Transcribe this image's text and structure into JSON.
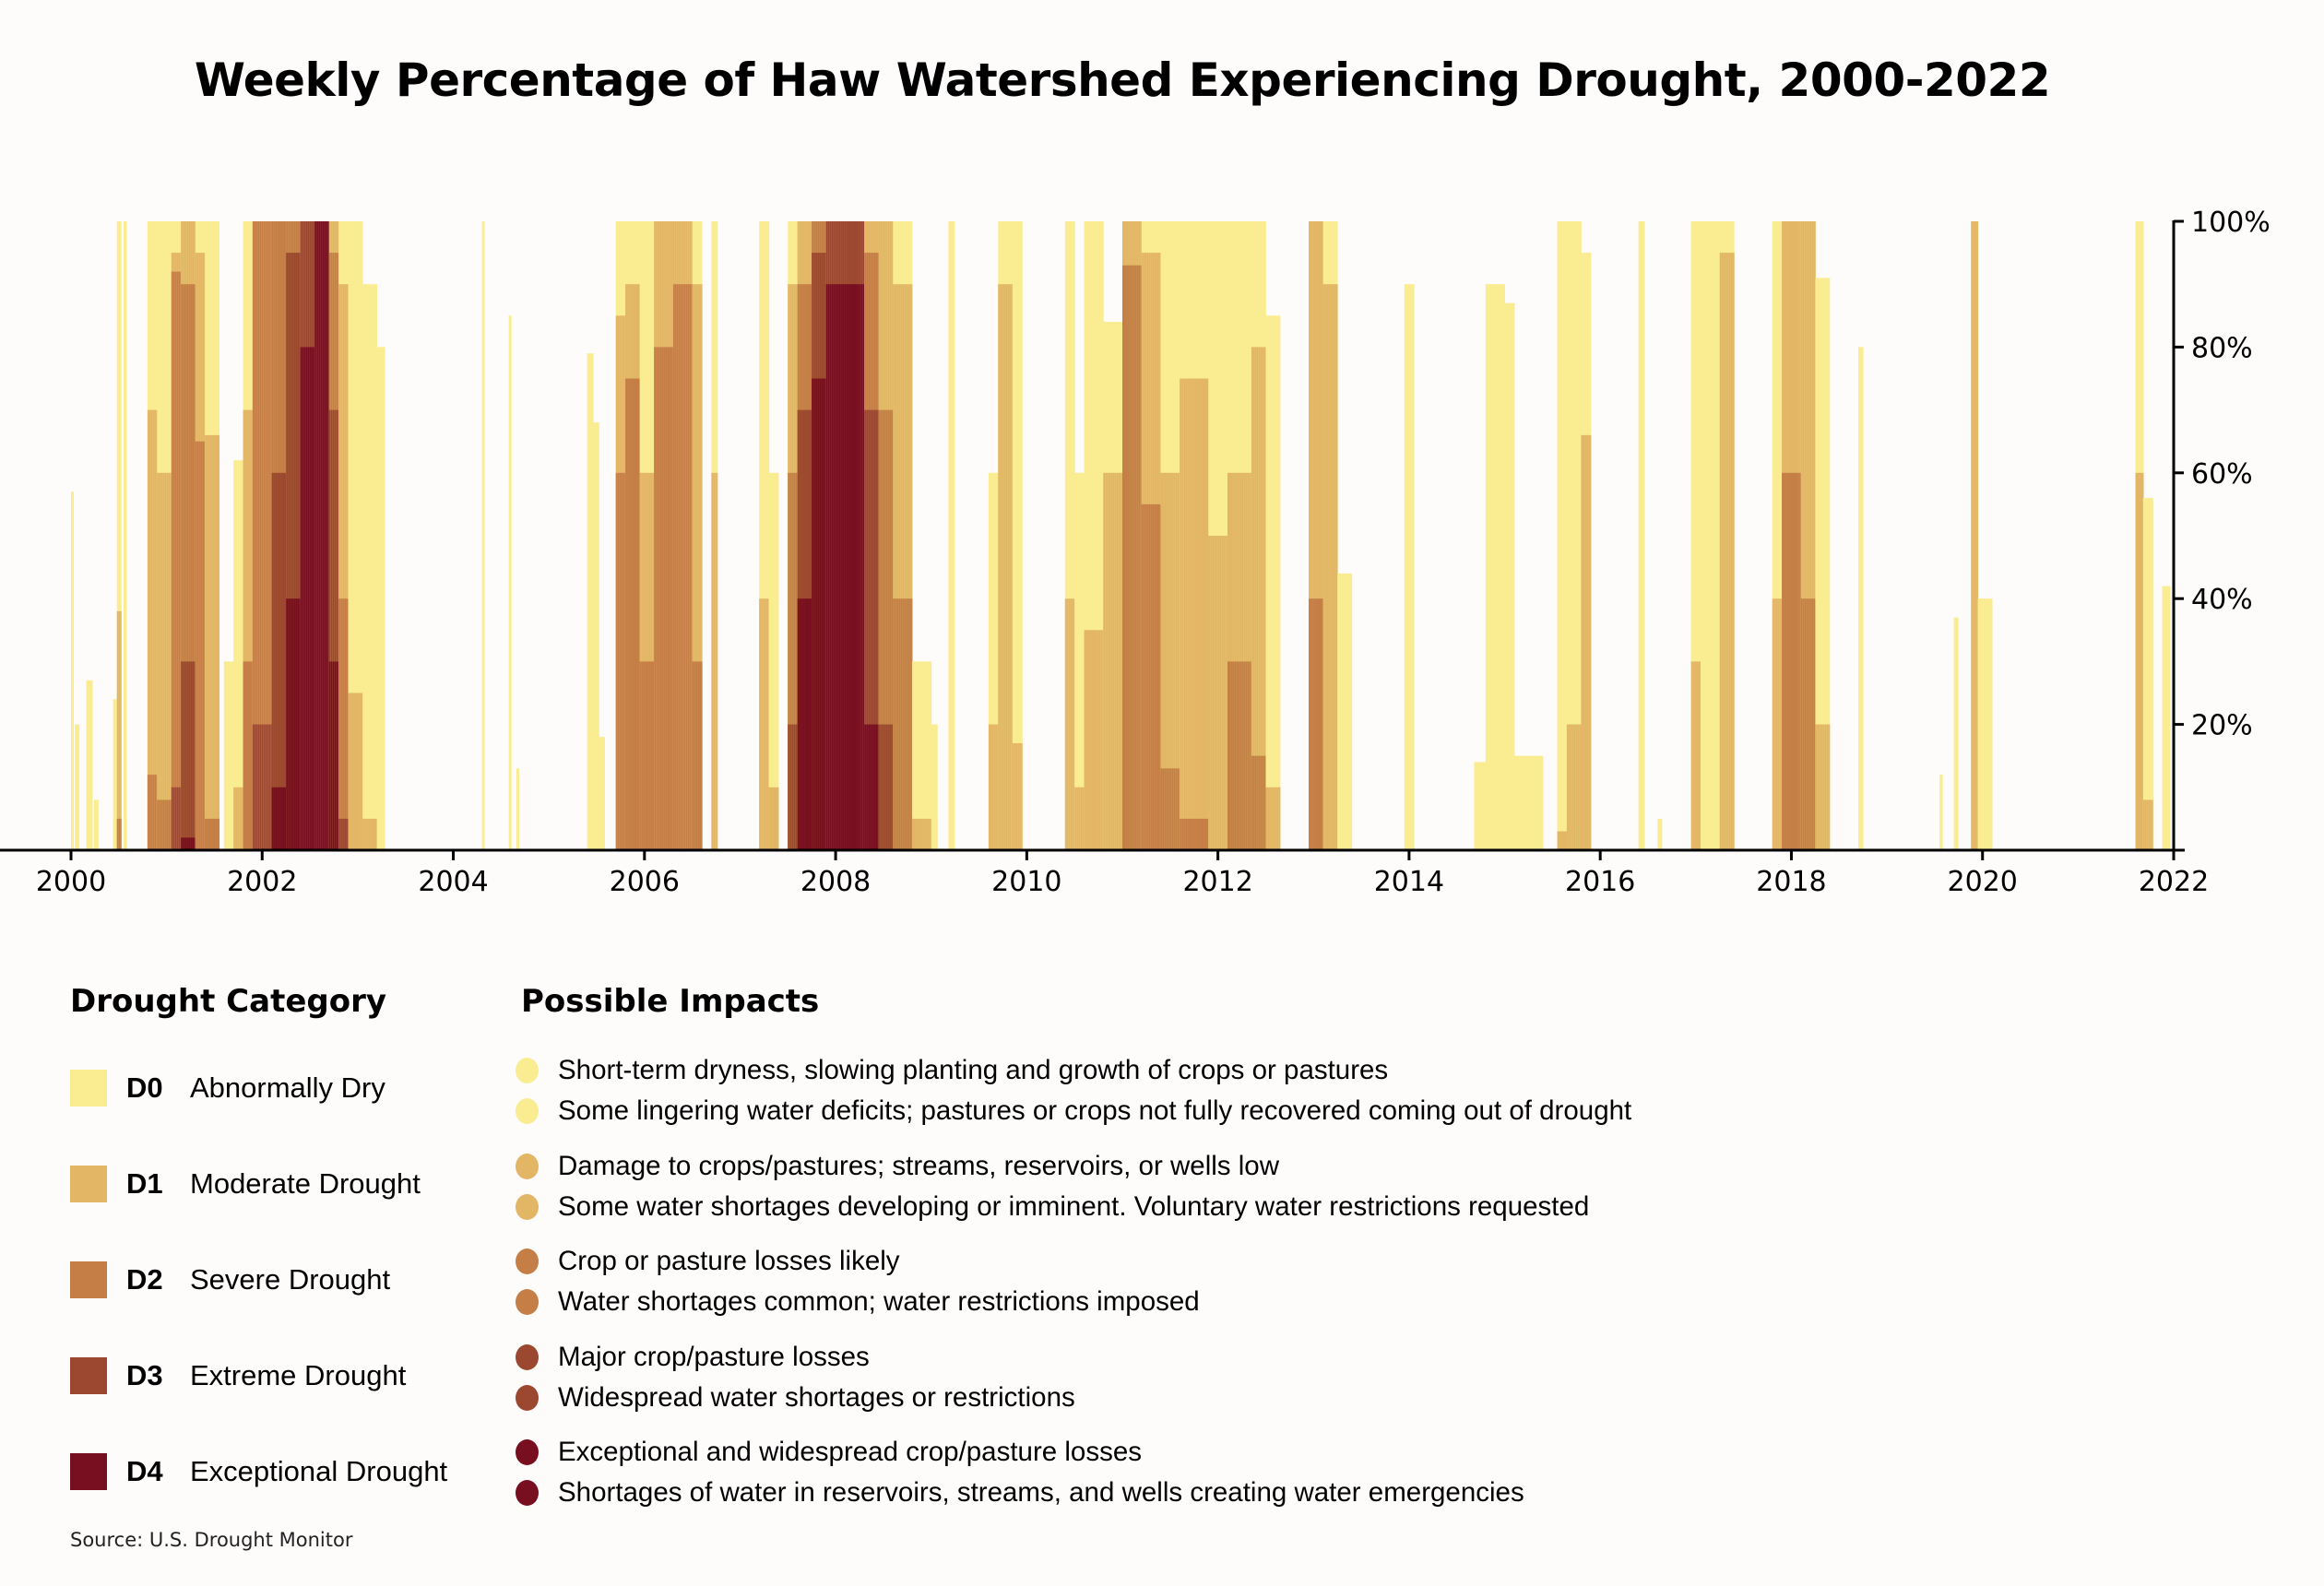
{
  "title": "Weekly Percentage of Haw Watershed Experiencing Drought, 2000-2022",
  "colors": {
    "D0": "#FAEC91",
    "D1": "#E2B665",
    "D2": "#C47E46",
    "D3": "#9C4830",
    "D4": "#780F20",
    "axis": "#000000",
    "background": "#FEFBFB"
  },
  "legend": {
    "category_heading": "Drought Category",
    "impacts_heading": "Possible Impacts",
    "categories": [
      {
        "code": "D0",
        "label": "Abnormally Dry",
        "color": "#FAEC91",
        "impacts": [
          "Short-term dryness, slowing planting and growth of crops or pastures",
          "Some lingering water deficits; pastures or crops not fully recovered coming out of drought"
        ]
      },
      {
        "code": "D1",
        "label": "Moderate Drought",
        "color": "#E2B665",
        "impacts": [
          "Damage to crops/pastures; streams, reservoirs, or wells low",
          "Some water shortages developing or imminent. Voluntary water restrictions requested"
        ]
      },
      {
        "code": "D2",
        "label": "Severe Drought",
        "color": "#C47E46",
        "impacts": [
          "Crop or pasture losses likely",
          "Water shortages common; water restrictions imposed"
        ]
      },
      {
        "code": "D3",
        "label": "Extreme Drought",
        "color": "#9C4830",
        "impacts": [
          "Major crop/pasture losses",
          "Widespread water shortages or restrictions"
        ]
      },
      {
        "code": "D4",
        "label": "Exceptional Drought",
        "color": "#780F20",
        "impacts": [
          "Exceptional and widespread crop/pasture losses",
          "Shortages of water in reservoirs, streams, and wells creating water emergencies"
        ]
      }
    ]
  },
  "source": "Source: U.S. Drought Monitor",
  "chart_data": {
    "type": "bar",
    "subtype": "weekly overlapping stacked area (cumulative categories)",
    "title": "Weekly Percentage of Haw Watershed Experiencing Drought, 2000-2022",
    "xlabel": "",
    "ylabel": "",
    "x_range": [
      2000,
      2022
    ],
    "ylim": [
      0,
      100
    ],
    "x_ticks": [
      "2000",
      "2002",
      "2004",
      "2006",
      "2008",
      "2010",
      "2012",
      "2014",
      "2016",
      "2018",
      "2020",
      "2022"
    ],
    "x_tick_values": [
      2000,
      2002,
      2004,
      2006,
      2008,
      2010,
      2012,
      2014,
      2016,
      2018,
      2020,
      2022
    ],
    "y_ticks": [
      "20%",
      "40%",
      "60%",
      "80%",
      "100%"
    ],
    "y_tick_values": [
      20,
      40,
      60,
      80,
      100
    ],
    "y_axis_side": "right",
    "grid": false,
    "series_names": [
      "D0 Abnormally Dry (or worse)",
      "D1 Moderate Drought (or worse)",
      "D2 Severe Drought (or worse)",
      "D3 Extreme Drought (or worse)",
      "D4 Exceptional Drought"
    ],
    "segment_format": "[start_year, end_year, D0+, D1+, D2+, D3+, D4] percent of area, approximate weekly values",
    "segments": [
      [
        2000.0,
        2000.02,
        57,
        0,
        0,
        0,
        0
      ],
      [
        2000.04,
        2000.08,
        20,
        0,
        0,
        0,
        0
      ],
      [
        2000.16,
        2000.22,
        27,
        0,
        0,
        0,
        0
      ],
      [
        2000.24,
        2000.28,
        8,
        0,
        0,
        0,
        0
      ],
      [
        2000.44,
        2000.48,
        24,
        0,
        0,
        0,
        0
      ],
      [
        2000.48,
        2000.52,
        100,
        38,
        5,
        0,
        0
      ],
      [
        2000.55,
        2000.58,
        100,
        0,
        0,
        0,
        0
      ],
      [
        2000.8,
        2000.9,
        100,
        70,
        12,
        0,
        0
      ],
      [
        2000.9,
        2001.05,
        100,
        60,
        8,
        0,
        0
      ],
      [
        2001.05,
        2001.15,
        100,
        95,
        92,
        10,
        0
      ],
      [
        2001.15,
        2001.3,
        100,
        100,
        90,
        30,
        2
      ],
      [
        2001.3,
        2001.4,
        100,
        95,
        65,
        0,
        0
      ],
      [
        2001.4,
        2001.55,
        100,
        66,
        5,
        0,
        0
      ],
      [
        2001.6,
        2001.7,
        30,
        0,
        0,
        0,
        0
      ],
      [
        2001.7,
        2001.8,
        62,
        10,
        0,
        0,
        0
      ],
      [
        2001.8,
        2001.9,
        100,
        70,
        30,
        0,
        0
      ],
      [
        2001.9,
        2002.1,
        100,
        100,
        100,
        20,
        0
      ],
      [
        2002.1,
        2002.25,
        100,
        100,
        100,
        60,
        10
      ],
      [
        2002.25,
        2002.4,
        100,
        100,
        100,
        95,
        40
      ],
      [
        2002.4,
        2002.55,
        100,
        100,
        100,
        100,
        80
      ],
      [
        2002.55,
        2002.7,
        100,
        100,
        100,
        100,
        100
      ],
      [
        2002.7,
        2002.8,
        100,
        100,
        95,
        70,
        30
      ],
      [
        2002.8,
        2002.9,
        100,
        90,
        40,
        5,
        0
      ],
      [
        2002.9,
        2003.05,
        100,
        25,
        0,
        0,
        0
      ],
      [
        2003.05,
        2003.2,
        90,
        5,
        0,
        0,
        0
      ],
      [
        2003.2,
        2003.28,
        80,
        0,
        0,
        0,
        0
      ],
      [
        2004.3,
        2004.32,
        100,
        0,
        0,
        0,
        0
      ],
      [
        2004.58,
        2004.6,
        85,
        0,
        0,
        0,
        0
      ],
      [
        2004.66,
        2004.68,
        13,
        0,
        0,
        0,
        0
      ],
      [
        2005.4,
        2005.46,
        79,
        0,
        0,
        0,
        0
      ],
      [
        2005.46,
        2005.52,
        68,
        0,
        0,
        0,
        0
      ],
      [
        2005.52,
        2005.58,
        18,
        0,
        0,
        0,
        0
      ],
      [
        2005.7,
        2005.8,
        100,
        85,
        60,
        0,
        0
      ],
      [
        2005.8,
        2005.95,
        100,
        90,
        75,
        0,
        0
      ],
      [
        2005.95,
        2006.1,
        100,
        60,
        30,
        0,
        0
      ],
      [
        2006.1,
        2006.3,
        100,
        100,
        80,
        0,
        0
      ],
      [
        2006.3,
        2006.5,
        100,
        100,
        90,
        0,
        0
      ],
      [
        2006.5,
        2006.6,
        100,
        90,
        30,
        0,
        0
      ],
      [
        2006.7,
        2006.76,
        100,
        60,
        0,
        0,
        0
      ],
      [
        2007.2,
        2007.3,
        100,
        40,
        0,
        0,
        0
      ],
      [
        2007.3,
        2007.4,
        60,
        10,
        0,
        0,
        0
      ],
      [
        2007.5,
        2007.6,
        100,
        90,
        60,
        20,
        0
      ],
      [
        2007.6,
        2007.75,
        100,
        100,
        90,
        70,
        40
      ],
      [
        2007.75,
        2007.9,
        100,
        100,
        100,
        95,
        75
      ],
      [
        2007.9,
        2008.3,
        100,
        100,
        100,
        100,
        90
      ],
      [
        2008.3,
        2008.45,
        100,
        100,
        95,
        70,
        20
      ],
      [
        2008.45,
        2008.6,
        100,
        100,
        70,
        20,
        0
      ],
      [
        2008.6,
        2008.8,
        100,
        90,
        40,
        0,
        0
      ],
      [
        2008.8,
        2009.0,
        30,
        5,
        0,
        0,
        0
      ],
      [
        2009.0,
        2009.06,
        20,
        0,
        0,
        0,
        0
      ],
      [
        2009.18,
        2009.24,
        100,
        0,
        0,
        0,
        0
      ],
      [
        2009.6,
        2009.7,
        60,
        20,
        0,
        0,
        0
      ],
      [
        2009.7,
        2009.85,
        100,
        90,
        0,
        0,
        0
      ],
      [
        2009.85,
        2009.95,
        100,
        17,
        0,
        0,
        0
      ],
      [
        2010.4,
        2010.5,
        100,
        40,
        0,
        0,
        0
      ],
      [
        2010.5,
        2010.6,
        60,
        10,
        0,
        0,
        0
      ],
      [
        2010.6,
        2010.8,
        100,
        35,
        0,
        0,
        0
      ],
      [
        2010.8,
        2011.0,
        84,
        60,
        0,
        0,
        0
      ],
      [
        2011.0,
        2011.2,
        100,
        100,
        93,
        0,
        0
      ],
      [
        2011.2,
        2011.4,
        100,
        95,
        55,
        0,
        0
      ],
      [
        2011.4,
        2011.6,
        100,
        60,
        13,
        0,
        0
      ],
      [
        2011.6,
        2011.9,
        100,
        75,
        5,
        0,
        0
      ],
      [
        2011.9,
        2012.1,
        100,
        50,
        0,
        0,
        0
      ],
      [
        2012.1,
        2012.35,
        100,
        60,
        30,
        0,
        0
      ],
      [
        2012.35,
        2012.5,
        100,
        80,
        15,
        0,
        0
      ],
      [
        2012.5,
        2012.65,
        85,
        10,
        0,
        0,
        0
      ],
      [
        2012.95,
        2013.1,
        100,
        100,
        40,
        0,
        0
      ],
      [
        2013.1,
        2013.25,
        100,
        90,
        0,
        0,
        0
      ],
      [
        2013.25,
        2013.4,
        44,
        0,
        0,
        0,
        0
      ],
      [
        2013.95,
        2014.05,
        90,
        0,
        0,
        0,
        0
      ],
      [
        2014.68,
        2014.8,
        14,
        0,
        0,
        0,
        0
      ],
      [
        2014.8,
        2015.0,
        90,
        0,
        0,
        0,
        0
      ],
      [
        2015.0,
        2015.1,
        87,
        0,
        0,
        0,
        0
      ],
      [
        2015.1,
        2015.4,
        15,
        0,
        0,
        0,
        0
      ],
      [
        2015.55,
        2015.65,
        100,
        3,
        0,
        0,
        0
      ],
      [
        2015.65,
        2015.8,
        100,
        20,
        0,
        0,
        0
      ],
      [
        2015.8,
        2015.9,
        95,
        66,
        0,
        0,
        0
      ],
      [
        2016.4,
        2016.46,
        100,
        0,
        0,
        0,
        0
      ],
      [
        2016.6,
        2016.64,
        5,
        0,
        0,
        0,
        0
      ],
      [
        2016.95,
        2017.05,
        100,
        30,
        0,
        0,
        0
      ],
      [
        2017.05,
        2017.25,
        100,
        0,
        0,
        0,
        0
      ],
      [
        2017.25,
        2017.4,
        100,
        95,
        0,
        0,
        0
      ],
      [
        2017.8,
        2017.9,
        100,
        40,
        0,
        0,
        0
      ],
      [
        2017.9,
        2018.1,
        100,
        100,
        60,
        0,
        0
      ],
      [
        2018.1,
        2018.25,
        100,
        100,
        40,
        0,
        0
      ],
      [
        2018.25,
        2018.4,
        91,
        20,
        0,
        0,
        0
      ],
      [
        2018.7,
        2018.75,
        80,
        0,
        0,
        0,
        0
      ],
      [
        2019.55,
        2019.58,
        12,
        0,
        0,
        0,
        0
      ],
      [
        2019.7,
        2019.74,
        37,
        0,
        0,
        0,
        0
      ],
      [
        2019.88,
        2019.95,
        100,
        100,
        0,
        0,
        0
      ],
      [
        2019.95,
        2020.1,
        40,
        0,
        0,
        0,
        0
      ],
      [
        2021.6,
        2021.68,
        100,
        60,
        0,
        0,
        0
      ],
      [
        2021.68,
        2021.78,
        56,
        8,
        0,
        0,
        0
      ],
      [
        2021.88,
        2021.96,
        42,
        0,
        0,
        0,
        0
      ]
    ]
  }
}
